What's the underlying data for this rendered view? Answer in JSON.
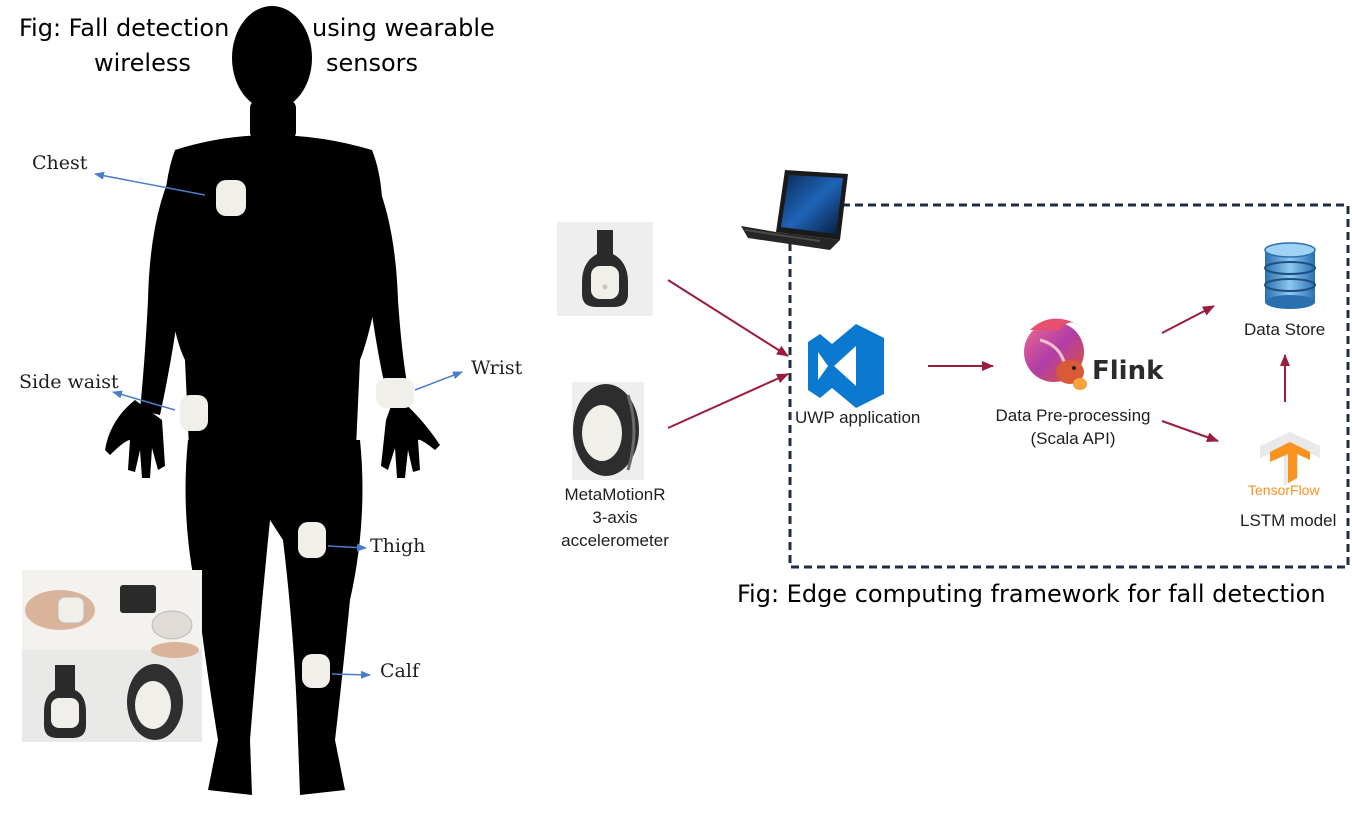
{
  "left_figure": {
    "caption_line1_left": "Fig: Fall detection",
    "caption_line1_right": "using wearable",
    "caption_line2_left": "wireless",
    "caption_line2_right": "sensors",
    "body_labels": [
      "Chest",
      "Side waist",
      "Wrist",
      "Thigh",
      "Calf"
    ]
  },
  "right_figure": {
    "device_label": [
      "MetaMotionR",
      "3-axis",
      "accelerometer"
    ],
    "uwp_label": "UWP application",
    "flink_logo_text": "Flink",
    "flink_label": [
      "Data Pre-processing",
      "(Scala API)"
    ],
    "data_store_label": "Data Store",
    "tensorflow_logo_text": "TensorFlow",
    "lstm_label": "LSTM model",
    "caption": "Fig: Edge computing framework for fall detection"
  },
  "colors": {
    "silhouette": "#000000",
    "sensor": "#f1efe9",
    "pointer_arrow": "#4a7ec9",
    "flow_arrow": "#9b1c3c",
    "dashed_border": "#1f2d44",
    "vs_blue": "#0b79d0",
    "db_blue": "#3b8fd0",
    "tf_orange": "#f7931e"
  }
}
